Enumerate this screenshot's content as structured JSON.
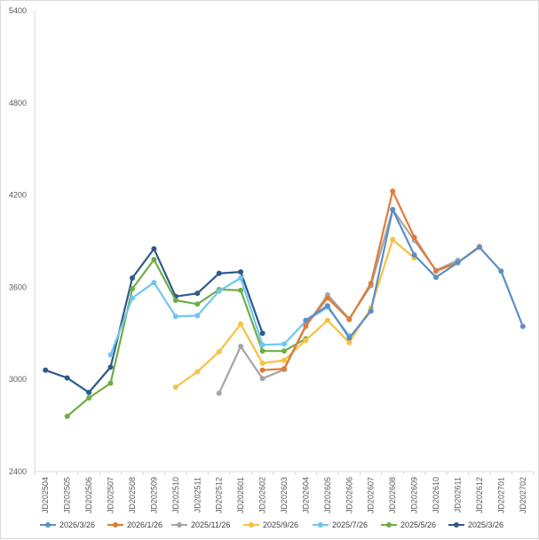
{
  "chart_data": {
    "type": "line",
    "title": "",
    "xlabel": "",
    "ylabel": "",
    "ylim": [
      2400,
      5400
    ],
    "yticks": [
      2400,
      3000,
      3600,
      4200,
      4800,
      5400
    ],
    "grid": false,
    "legend_position": "bottom",
    "categories": [
      "JD202504",
      "JD202505",
      "JD202506",
      "JD202507",
      "JD202508",
      "JD202509",
      "JD202510",
      "JD202511",
      "JD202512",
      "JD202601",
      "JD202602",
      "JD202603",
      "JD202604",
      "JD202605",
      "JD202606",
      "JD202607",
      "JD202608",
      "JD202609",
      "JD202610",
      "JD202611",
      "JD202612",
      "JD202701",
      "JD202702"
    ],
    "series": [
      {
        "name": "2026/3/26",
        "color": "#5b8fc8",
        "values": [
          null,
          null,
          null,
          null,
          null,
          null,
          null,
          null,
          null,
          null,
          null,
          null,
          3385,
          3480,
          3270,
          3445,
          4105,
          3810,
          3665,
          3760,
          3860,
          3705,
          3345
        ]
      },
      {
        "name": "2026/1/26",
        "color": "#e07b39",
        "values": [
          null,
          null,
          null,
          null,
          null,
          null,
          null,
          null,
          null,
          null,
          3060,
          3070,
          3350,
          3530,
          3390,
          3625,
          4225,
          3925,
          3705,
          3760,
          3865,
          null,
          null
        ]
      },
      {
        "name": "2025/11/26",
        "color": "#a5a5a5",
        "values": [
          null,
          null,
          null,
          null,
          null,
          null,
          null,
          null,
          2910,
          3215,
          3005,
          3065,
          3345,
          3550,
          3395,
          3610,
          4105,
          3905,
          3710,
          3775,
          null,
          null,
          null
        ]
      },
      {
        "name": "2025/9/26",
        "color": "#f5c242",
        "values": [
          null,
          null,
          null,
          null,
          null,
          null,
          2950,
          3050,
          3180,
          3360,
          3105,
          3125,
          3255,
          3385,
          3240,
          3465,
          3910,
          3790,
          null,
          null,
          null,
          null,
          null
        ]
      },
      {
        "name": "2025/7/26",
        "color": "#71c6ef",
        "values": [
          null,
          null,
          null,
          3160,
          3530,
          3630,
          3410,
          3415,
          3575,
          3660,
          3225,
          3230,
          3380,
          3470,
          3285,
          null,
          null,
          null,
          null,
          null,
          null,
          null,
          null
        ]
      },
      {
        "name": "2025/5/26",
        "color": "#6fad47",
        "values": [
          null,
          2760,
          2880,
          2975,
          3590,
          3780,
          3515,
          3490,
          3585,
          3580,
          3185,
          3185,
          3265,
          null,
          null,
          null,
          null,
          null,
          null,
          null,
          null,
          null,
          null
        ]
      },
      {
        "name": "2025/3/26",
        "color": "#2e5a8a",
        "values": [
          3060,
          3010,
          2915,
          3080,
          3660,
          3850,
          3540,
          3560,
          3690,
          3700,
          3300,
          null,
          null,
          null,
          null,
          null,
          null,
          null,
          null,
          null,
          null,
          null,
          null
        ]
      }
    ]
  }
}
